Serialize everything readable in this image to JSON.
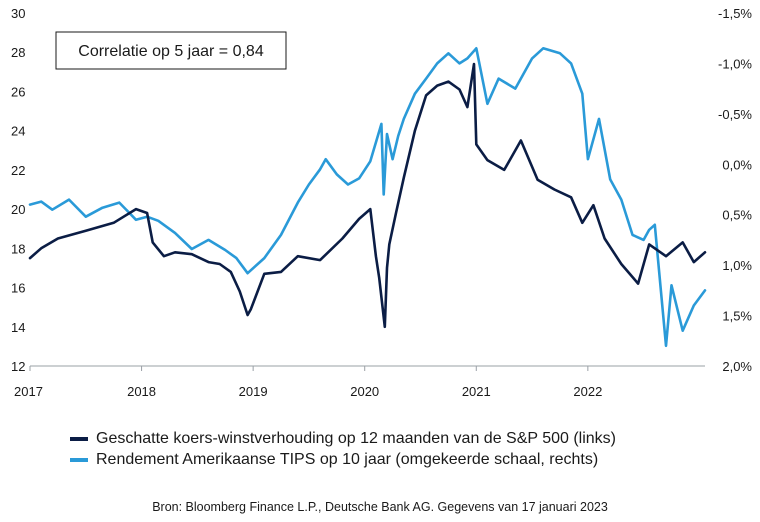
{
  "chart_data": {
    "type": "line",
    "title": "",
    "xlabel": "",
    "ylabel": "",
    "x_ticks": [
      "2017",
      "2018",
      "2019",
      "2020",
      "2021",
      "2022"
    ],
    "y_left_ticks": [
      "30",
      "28",
      "26",
      "24",
      "22",
      "20",
      "18",
      "16",
      "14",
      "12"
    ],
    "y_right_ticks": [
      "-1,5%",
      "-1,0%",
      "-0,5%",
      "0,0%",
      "0,5%",
      "1,0%",
      "1,5%",
      "2,0%"
    ],
    "ylim_left": [
      12,
      30
    ],
    "ylim_right_inverted": [
      2.0,
      -1.5
    ],
    "x_range": [
      2017.0,
      2023.05
    ],
    "grid": false,
    "annotation": "Correlatie op 5 jaar = 0,84",
    "series": [
      {
        "name": "Geschatte koers-winstverhouding op 12 maanden van de S&P 500 (links)",
        "axis": "left",
        "color": "#0b1d45",
        "x": [
          2017.0,
          2017.1,
          2017.25,
          2017.5,
          2017.75,
          2017.95,
          2018.05,
          2018.1,
          2018.2,
          2018.3,
          2018.45,
          2018.6,
          2018.7,
          2018.8,
          2018.88,
          2018.95,
          2018.98,
          2019.1,
          2019.25,
          2019.4,
          2019.6,
          2019.8,
          2019.95,
          2020.05,
          2020.1,
          2020.13,
          2020.18,
          2020.2,
          2020.22,
          2020.28,
          2020.35,
          2020.45,
          2020.55,
          2020.65,
          2020.75,
          2020.85,
          2020.92,
          2020.98,
          2021.0,
          2021.1,
          2021.25,
          2021.4,
          2021.55,
          2021.7,
          2021.85,
          2021.95,
          2022.05,
          2022.15,
          2022.3,
          2022.45,
          2022.55,
          2022.7,
          2022.85,
          2022.95,
          2023.05
        ],
        "values": [
          17.5,
          18.0,
          18.5,
          18.9,
          19.3,
          20.0,
          19.8,
          18.3,
          17.6,
          17.8,
          17.7,
          17.3,
          17.2,
          16.8,
          15.8,
          14.6,
          14.9,
          16.7,
          16.8,
          17.6,
          17.4,
          18.5,
          19.5,
          20.0,
          17.6,
          16.5,
          14.0,
          17.0,
          18.2,
          19.8,
          21.6,
          24.0,
          25.8,
          26.3,
          26.5,
          26.1,
          25.2,
          27.4,
          23.3,
          22.5,
          22.0,
          23.5,
          21.5,
          21.0,
          20.6,
          19.3,
          20.2,
          18.5,
          17.2,
          16.2,
          18.2,
          17.6,
          18.3,
          17.3,
          17.8
        ]
      },
      {
        "name": "Rendement Amerikaanse TIPS op 10 jaar (omgekeerde schaal, rechts)",
        "axis": "right",
        "color": "#2a9ad8",
        "x": [
          2017.0,
          2017.1,
          2017.2,
          2017.35,
          2017.5,
          2017.65,
          2017.8,
          2017.95,
          2018.05,
          2018.15,
          2018.3,
          2018.45,
          2018.6,
          2018.75,
          2018.85,
          2018.95,
          2019.1,
          2019.25,
          2019.4,
          2019.5,
          2019.6,
          2019.65,
          2019.75,
          2019.85,
          2019.95,
          2020.05,
          2020.15,
          2020.17,
          2020.2,
          2020.25,
          2020.3,
          2020.35,
          2020.45,
          2020.55,
          2020.65,
          2020.75,
          2020.85,
          2020.92,
          2021.0,
          2021.1,
          2021.2,
          2021.35,
          2021.5,
          2021.6,
          2021.75,
          2021.85,
          2021.95,
          2022.0,
          2022.1,
          2022.2,
          2022.3,
          2022.4,
          2022.5,
          2022.55,
          2022.6,
          2022.7,
          2022.75,
          2022.85,
          2022.95,
          2023.05
        ],
        "values": [
          0.4,
          0.37,
          0.45,
          0.35,
          0.52,
          0.43,
          0.38,
          0.55,
          0.52,
          0.56,
          0.68,
          0.84,
          0.75,
          0.85,
          0.93,
          1.08,
          0.93,
          0.7,
          0.38,
          0.2,
          0.05,
          -0.05,
          0.1,
          0.2,
          0.14,
          -0.03,
          -0.4,
          0.3,
          -0.3,
          -0.05,
          -0.28,
          -0.45,
          -0.7,
          -0.85,
          -1.0,
          -1.1,
          -1.0,
          -1.05,
          -1.15,
          -0.6,
          -0.85,
          -0.75,
          -1.05,
          -1.15,
          -1.1,
          -1.0,
          -0.7,
          -0.05,
          -0.45,
          0.15,
          0.35,
          0.7,
          0.75,
          0.65,
          0.6,
          1.8,
          1.2,
          1.65,
          1.4,
          1.25
        ]
      }
    ]
  },
  "legend": [
    {
      "label": "Geschatte koers-winstverhouding op 12 maanden van de S&P 500 (links)",
      "color": "#0b1d45"
    },
    {
      "label": "Rendement Amerikaanse TIPS op 10 jaar (omgekeerde schaal, rechts)",
      "color": "#2a9ad8"
    }
  ],
  "source": "Bron: Bloomberg Finance L.P., Deutsche Bank AG. Gegevens van 17 januari 2023"
}
